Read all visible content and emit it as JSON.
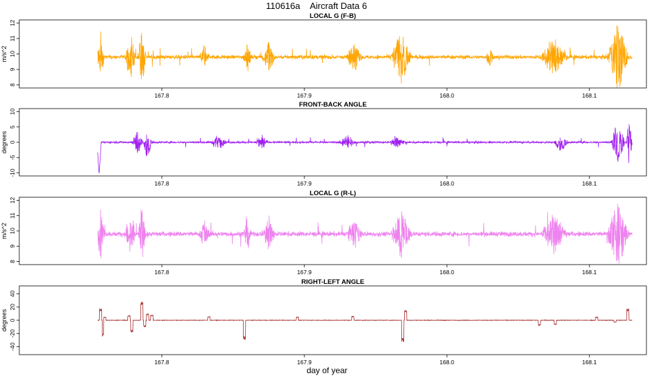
{
  "figure": {
    "title_left": "110616a",
    "title_right": "Aircraft Data 6",
    "xlabel": "day of year"
  },
  "chart_data": [
    {
      "type": "line",
      "title": "LOCAL G (F-B)",
      "ylabel": "m/s^2",
      "color": "#FFA500",
      "xlim": [
        167.7,
        168.14
      ],
      "ylim": [
        7.8,
        12.2
      ],
      "xticks": [
        167.8,
        167.9,
        168.0,
        168.1
      ],
      "xtick_labels": [
        "167.8",
        "167.9",
        "168.0",
        "168.1"
      ],
      "yticks": [
        8,
        9,
        10,
        11,
        12
      ],
      "ytick_labels": [
        "8",
        "9",
        "10",
        "11",
        "12"
      ],
      "series": [
        {
          "x_range": [
            167.755,
            168.13
          ],
          "baseline": 9.8,
          "noise": 0.12,
          "bursts": [
            {
              "x": 167.757,
              "amp": 1.7,
              "width": 0.003
            },
            {
              "x": 167.778,
              "amp": 1.6,
              "width": 0.004
            },
            {
              "x": 167.786,
              "amp": 2.0,
              "width": 0.003
            },
            {
              "x": 167.83,
              "amp": 0.8,
              "width": 0.004
            },
            {
              "x": 167.86,
              "amp": 1.0,
              "width": 0.003
            },
            {
              "x": 167.875,
              "amp": 1.1,
              "width": 0.005
            },
            {
              "x": 167.935,
              "amp": 1.0,
              "width": 0.006
            },
            {
              "x": 167.968,
              "amp": 1.8,
              "width": 0.008
            },
            {
              "x": 168.03,
              "amp": 0.6,
              "width": 0.003
            },
            {
              "x": 168.075,
              "amp": 1.3,
              "width": 0.01
            },
            {
              "x": 168.12,
              "amp": 2.4,
              "width": 0.008
            }
          ]
        }
      ]
    },
    {
      "type": "line",
      "title": "FRONT-BACK ANGLE",
      "ylabel": "degrees",
      "color": "#A020F0",
      "xlim": [
        167.7,
        168.14
      ],
      "ylim": [
        -11,
        11
      ],
      "xticks": [
        167.8,
        167.9,
        168.0,
        168.1
      ],
      "xtick_labels": [
        "167.8",
        "167.9",
        "168.0",
        "168.1"
      ],
      "yticks": [
        -10,
        -5,
        0,
        5,
        10
      ],
      "ytick_labels": [
        "-10",
        "-5",
        "0",
        "5",
        "10"
      ],
      "series": [
        {
          "x_range": [
            167.755,
            168.13
          ],
          "baseline": 0,
          "noise": 0.3,
          "bursts": [
            {
              "x": 167.756,
              "amp": -10.5,
              "width": 0.0015,
              "spike": true
            },
            {
              "x": 167.783,
              "amp": 4.0,
              "width": 0.004
            },
            {
              "x": 167.79,
              "amp": -5.0,
              "width": 0.003
            },
            {
              "x": 167.84,
              "amp": 2.5,
              "width": 0.006
            },
            {
              "x": 167.87,
              "amp": 2.5,
              "width": 0.005
            },
            {
              "x": 167.93,
              "amp": 2.5,
              "width": 0.006
            },
            {
              "x": 167.965,
              "amp": 2.0,
              "width": 0.006
            },
            {
              "x": 168.08,
              "amp": -2.5,
              "width": 0.006
            },
            {
              "x": 168.12,
              "amp": 8.0,
              "width": 0.005
            },
            {
              "x": 168.128,
              "amp": 10.5,
              "width": 0.002
            }
          ]
        }
      ]
    },
    {
      "type": "line",
      "title": "LOCAL G (R-L)",
      "ylabel": "m/s^2",
      "color": "#EE82EE",
      "xlim": [
        167.7,
        168.14
      ],
      "ylim": [
        7.8,
        12.2
      ],
      "xticks": [
        167.8,
        167.9,
        168.0,
        168.1
      ],
      "xtick_labels": [
        "167.8",
        "167.9",
        "168.0",
        "168.1"
      ],
      "yticks": [
        8,
        9,
        10,
        11,
        12
      ],
      "ytick_labels": [
        "8",
        "9",
        "10",
        "11",
        "12"
      ],
      "series": [
        {
          "x_range": [
            167.755,
            168.13
          ],
          "baseline": 9.8,
          "noise": 0.15,
          "bursts": [
            {
              "x": 167.757,
              "amp": 1.8,
              "width": 0.003
            },
            {
              "x": 167.778,
              "amp": 1.6,
              "width": 0.004
            },
            {
              "x": 167.786,
              "amp": 2.0,
              "width": 0.003
            },
            {
              "x": 167.83,
              "amp": 0.9,
              "width": 0.004
            },
            {
              "x": 167.86,
              "amp": 1.0,
              "width": 0.003
            },
            {
              "x": 167.875,
              "amp": 1.1,
              "width": 0.005
            },
            {
              "x": 167.935,
              "amp": 1.0,
              "width": 0.006
            },
            {
              "x": 167.968,
              "amp": 1.6,
              "width": 0.008
            },
            {
              "x": 168.075,
              "amp": 1.4,
              "width": 0.01
            },
            {
              "x": 168.12,
              "amp": 2.4,
              "width": 0.008
            }
          ]
        }
      ]
    },
    {
      "type": "line",
      "title": "RIGHT-LEFT ANGLE",
      "ylabel": "degrees",
      "color": "#A52A2A",
      "xlim": [
        167.7,
        168.14
      ],
      "ylim": [
        -52,
        52
      ],
      "xticks": [
        167.8,
        167.9,
        168.0,
        168.1
      ],
      "xtick_labels": [
        "167.8",
        "167.9",
        "168.0",
        "168.1"
      ],
      "yticks": [
        -40,
        -20,
        0,
        20,
        40
      ],
      "ytick_labels": [
        "-40",
        "-20",
        "0",
        "20",
        "40"
      ],
      "series": [
        {
          "x_range": [
            167.755,
            168.13
          ],
          "baseline": 0,
          "noise": 0.4,
          "steps": [
            {
              "x": 167.757,
              "y": 18
            },
            {
              "x": 167.759,
              "y": -24
            },
            {
              "x": 167.76,
              "y": 5
            },
            {
              "x": 167.777,
              "y": 7
            },
            {
              "x": 167.779,
              "y": -18
            },
            {
              "x": 167.786,
              "y": 28
            },
            {
              "x": 167.788,
              "y": -10
            },
            {
              "x": 167.79,
              "y": 10
            },
            {
              "x": 167.793,
              "y": 8
            },
            {
              "x": 167.833,
              "y": 6
            },
            {
              "x": 167.858,
              "y": -30
            },
            {
              "x": 167.895,
              "y": 5
            },
            {
              "x": 167.934,
              "y": 6
            },
            {
              "x": 167.969,
              "y": -33
            },
            {
              "x": 167.971,
              "y": 15
            },
            {
              "x": 168.065,
              "y": -8
            },
            {
              "x": 168.076,
              "y": -7
            },
            {
              "x": 168.105,
              "y": 5
            },
            {
              "x": 168.118,
              "y": -3
            },
            {
              "x": 168.127,
              "y": 18
            }
          ]
        }
      ]
    }
  ]
}
